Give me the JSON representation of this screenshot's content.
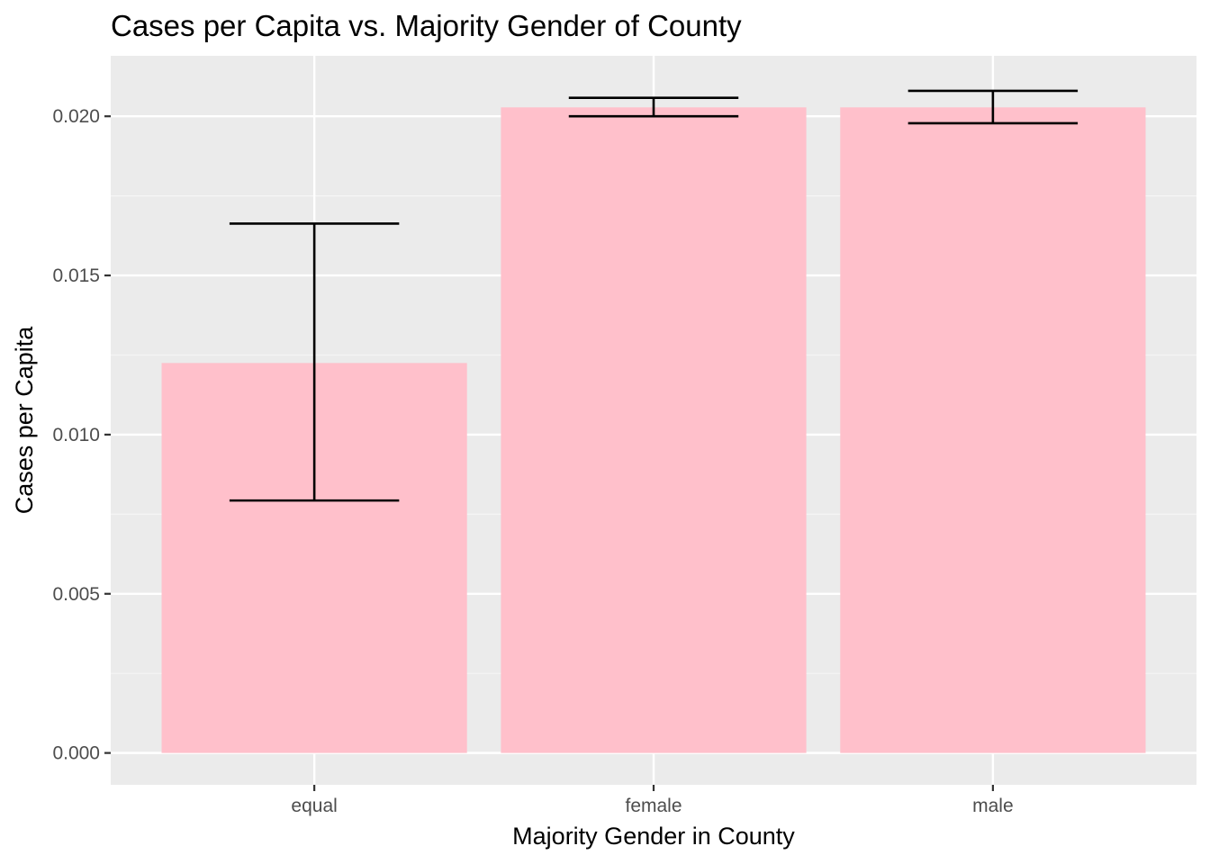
{
  "chart_data": {
    "type": "bar",
    "title": "Cases per Capita vs. Majority Gender of County",
    "xlabel": "Majority Gender in County",
    "ylabel": "Cases per Capita",
    "categories": [
      "equal",
      "female",
      "male"
    ],
    "values": [
      0.01225,
      0.02028,
      0.02028
    ],
    "error_bars": [
      {
        "low": 0.00793,
        "high": 0.01663
      },
      {
        "low": 0.02,
        "high": 0.02058
      },
      {
        "low": 0.01978,
        "high": 0.0208
      }
    ],
    "ylim": [
      -0.001,
      0.0219
    ],
    "yticks": [
      0.0,
      0.005,
      0.01,
      0.015,
      0.02
    ],
    "ytick_labels": [
      "0.000",
      "0.005",
      "0.010",
      "0.015",
      "0.020"
    ],
    "grid": true,
    "legend": "none",
    "colors": {
      "bar": "#ffc0cb",
      "error_bar": "#000000",
      "panel": "#ebebeb",
      "grid_major": "#ffffff",
      "grid_minor": "#f5f5f5",
      "tick": "#333333"
    }
  }
}
